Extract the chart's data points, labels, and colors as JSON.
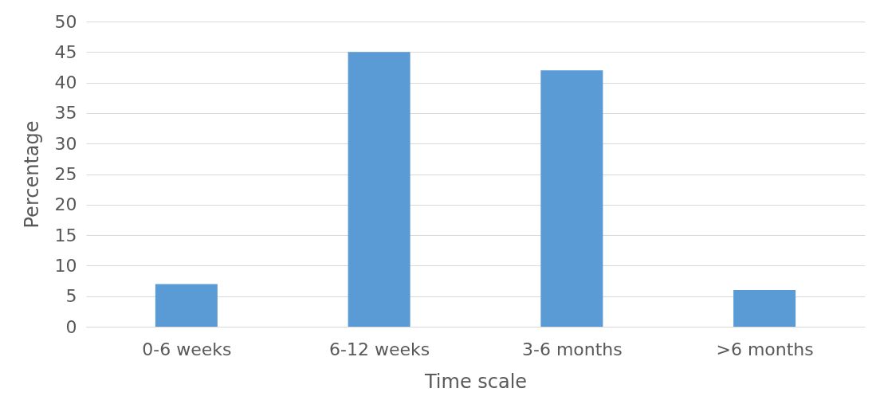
{
  "chart_data": {
    "type": "bar",
    "xlabel": "Time scale",
    "ylabel": "Percentage",
    "categories": [
      "0-6 weeks",
      "6-12 weeks",
      "3-6 months",
      ">6 months"
    ],
    "values": [
      7,
      45,
      42,
      6
    ],
    "color": "#5b9bd5",
    "ylim": [
      0,
      50
    ],
    "yticks": [
      0,
      5,
      10,
      15,
      20,
      25,
      30,
      35,
      40,
      45,
      50
    ],
    "grid": "y"
  }
}
